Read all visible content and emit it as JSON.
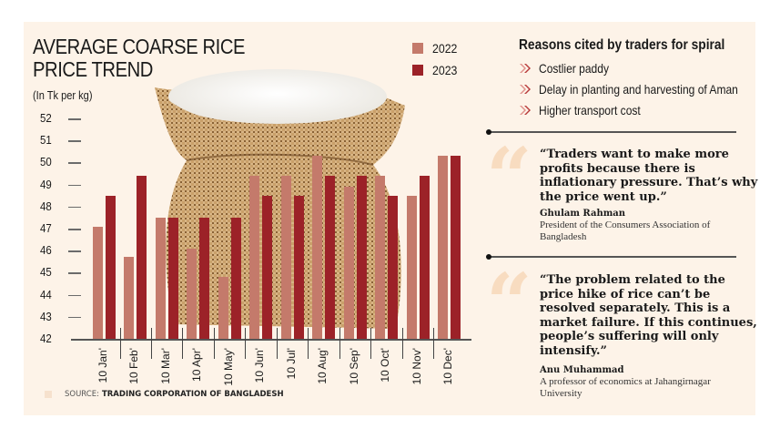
{
  "colors": {
    "background": "#fdf3e8",
    "series_2022": "#c47a6b",
    "series_2023": "#9c2228",
    "quote_mark": "#f8dcc0",
    "bullet": "#b73a3a"
  },
  "header": {
    "title_line1": "AVERAGE COARSE RICE",
    "title_line2": "PRICE TREND",
    "unit": "(In Tk per kg)"
  },
  "legend": [
    {
      "label": "2022",
      "color": "#c47a6b"
    },
    {
      "label": "2023",
      "color": "#9c2228"
    }
  ],
  "y_axis": {
    "ticks": [
      "52",
      "51",
      "50",
      "49",
      "48",
      "47",
      "46",
      "45",
      "44",
      "43",
      "42"
    ]
  },
  "x_axis": {
    "labels": [
      "10 Jan'",
      "10 Feb'",
      "10 Mar'",
      "10 Apr'",
      "10 May'",
      "10 Jun'",
      "10 Jul'",
      "10 Aug'",
      "10 Sep'",
      "10 Oct'",
      "10 Nov'",
      "10 Dec'"
    ]
  },
  "chart_data": {
    "type": "bar",
    "title": "AVERAGE COARSE RICE PRICE TREND",
    "subtitle": "(In Tk per kg)",
    "xlabel": "",
    "ylabel": "Tk per kg",
    "ylim": [
      42,
      52
    ],
    "yticks": [
      42,
      43,
      44,
      45,
      46,
      47,
      48,
      49,
      50,
      51,
      52
    ],
    "grid": false,
    "legend_position": "top-right of chart",
    "categories": [
      "10 Jan'",
      "10 Feb'",
      "10 Mar'",
      "10 Apr'",
      "10 May'",
      "10 Jun'",
      "10 Jul'",
      "10 Aug'",
      "10 Sep'",
      "10 Oct'",
      "10 Nov'",
      "10 Dec'"
    ],
    "series": [
      {
        "name": "2022",
        "color": "#c47a6b",
        "values": [
          47.1,
          45.7,
          47.5,
          46.1,
          44.8,
          49.4,
          49.4,
          50.3,
          48.9,
          49.4,
          48.5,
          50.3
        ]
      },
      {
        "name": "2023",
        "color": "#9c2228",
        "values": [
          48.5,
          49.4,
          47.5,
          47.5,
          47.5,
          48.5,
          48.5,
          49.4,
          49.4,
          48.5,
          49.4,
          50.3
        ]
      }
    ]
  },
  "reasons": {
    "title": "Reasons cited by traders for spiral",
    "items": [
      "Costlier paddy",
      "Delay in planting and harvesting of Aman",
      "Higher transport cost"
    ]
  },
  "quotes": [
    {
      "text": "“Traders want to make more profits because there is inflationary pressure. That’s why the price went up.”",
      "name": "Ghulam Rahman",
      "role": "President of the Consumers Association of Bangladesh"
    },
    {
      "text": "“The problem related to the price hike of rice can’t be resolved separately. This is a market failure. If this continues, people’s suffering will only intensify.”",
      "name": "Anu Muhammad",
      "role": "A professor of economics at Jahangirnagar University"
    }
  ],
  "source": {
    "prefix": "SOURCE:",
    "org": "TRADING CORPORATION OF BANGLADESH"
  }
}
